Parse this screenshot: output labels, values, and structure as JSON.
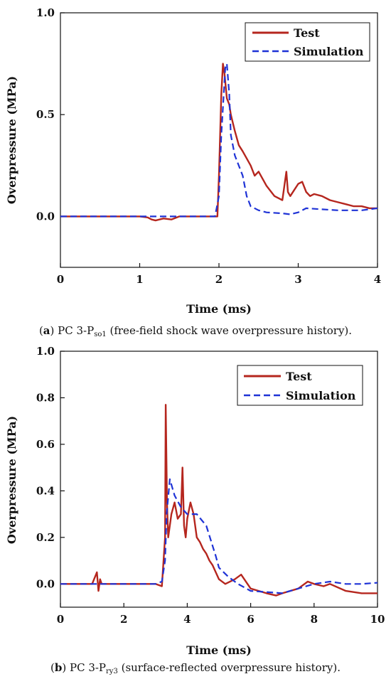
{
  "colors": {
    "test": "#b5261e",
    "simulation": "#1f33d6",
    "axis": "#111111"
  },
  "chart_data": [
    {
      "type": "line",
      "xlabel": "Time (ms)",
      "ylabel": "Overpressure (MPa)",
      "xlim": [
        0,
        4
      ],
      "ylim": [
        -0.25,
        1.0
      ],
      "xticks": [
        "0",
        "1",
        "2",
        "3",
        "4"
      ],
      "yticks": [
        "0.0",
        "0.5",
        "1.0"
      ],
      "xtick_values": [
        0,
        1,
        2,
        3,
        4
      ],
      "ytick_values": [
        0.0,
        0.5,
        1.0
      ],
      "legend": [
        "Test",
        "Simulation"
      ],
      "legend_position": "top-right",
      "grid": false,
      "caption": {
        "label": "a",
        "prefix": "PC 3-P",
        "sub": "so1",
        "suffix": " (free-field shock wave overpressure history)."
      },
      "series": [
        {
          "name": "Test",
          "x": [
            0,
            0.5,
            1.0,
            1.1,
            1.15,
            1.2,
            1.3,
            1.4,
            1.5,
            1.7,
            1.9,
            1.98,
            2.0,
            2.03,
            2.05,
            2.07,
            2.1,
            2.13,
            2.15,
            2.2,
            2.25,
            2.3,
            2.4,
            2.45,
            2.5,
            2.6,
            2.7,
            2.8,
            2.85,
            2.87,
            2.9,
            2.95,
            3.0,
            3.05,
            3.1,
            3.15,
            3.2,
            3.3,
            3.4,
            3.5,
            3.6,
            3.7,
            3.8,
            3.9,
            4.0
          ],
          "y": [
            0.0,
            0.0,
            0.0,
            -0.005,
            -0.015,
            -0.02,
            -0.01,
            -0.015,
            0.0,
            0.0,
            0.0,
            0.0,
            0.2,
            0.6,
            0.75,
            0.7,
            0.58,
            0.55,
            0.5,
            0.42,
            0.35,
            0.32,
            0.25,
            0.2,
            0.22,
            0.15,
            0.1,
            0.08,
            0.22,
            0.12,
            0.1,
            0.13,
            0.16,
            0.17,
            0.12,
            0.1,
            0.11,
            0.1,
            0.08,
            0.07,
            0.06,
            0.05,
            0.05,
            0.04,
            0.04
          ]
        },
        {
          "name": "Simulation",
          "x": [
            0,
            0.5,
            1.0,
            1.5,
            1.8,
            1.95,
            2.0,
            2.03,
            2.06,
            2.08,
            2.1,
            2.13,
            2.15,
            2.2,
            2.3,
            2.35,
            2.4,
            2.5,
            2.6,
            2.8,
            2.9,
            3.0,
            3.05,
            3.1,
            3.3,
            3.5,
            3.8,
            4.0
          ],
          "y": [
            0.0,
            0.0,
            0.0,
            0.0,
            0.0,
            0.0,
            0.1,
            0.4,
            0.6,
            0.73,
            0.75,
            0.6,
            0.4,
            0.3,
            0.2,
            0.1,
            0.05,
            0.03,
            0.02,
            0.015,
            0.01,
            0.02,
            0.03,
            0.04,
            0.035,
            0.03,
            0.03,
            0.04
          ]
        }
      ]
    },
    {
      "type": "line",
      "xlabel": "Time (ms)",
      "ylabel": "Overpressure (MPa)",
      "xlim": [
        0,
        10
      ],
      "ylim": [
        -0.1,
        1.0
      ],
      "xticks": [
        "0",
        "2",
        "4",
        "6",
        "8",
        "10"
      ],
      "yticks": [
        "0.0",
        "0.2",
        "0.4",
        "0.6",
        "0.8",
        "1.0"
      ],
      "xtick_values": [
        0,
        2,
        4,
        6,
        8,
        10
      ],
      "ytick_values": [
        0.0,
        0.2,
        0.4,
        0.6,
        0.8,
        1.0
      ],
      "legend": [
        "Test",
        "Simulation"
      ],
      "legend_position": "top-right",
      "grid": false,
      "caption": {
        "label": "b",
        "prefix": "PC 3-P",
        "sub": "ry3",
        "suffix": " (surface-reflected overpressure history)."
      },
      "series": [
        {
          "name": "Test",
          "x": [
            0,
            0.5,
            1.0,
            1.15,
            1.2,
            1.25,
            1.3,
            2.0,
            3.0,
            3.2,
            3.3,
            3.32,
            3.36,
            3.4,
            3.5,
            3.6,
            3.7,
            3.8,
            3.85,
            3.9,
            3.95,
            4.0,
            4.1,
            4.2,
            4.3,
            4.4,
            4.5,
            4.6,
            4.7,
            4.8,
            5.0,
            5.2,
            5.5,
            5.7,
            6.0,
            6.5,
            6.8,
            7.0,
            7.5,
            7.8,
            8.0,
            8.3,
            8.5,
            9.0,
            9.5,
            10.0
          ],
          "y": [
            0.0,
            0.0,
            0.0,
            0.05,
            -0.03,
            0.02,
            0.0,
            0.0,
            0.0,
            -0.01,
            0.2,
            0.77,
            0.35,
            0.2,
            0.3,
            0.35,
            0.28,
            0.3,
            0.5,
            0.25,
            0.2,
            0.28,
            0.35,
            0.3,
            0.2,
            0.18,
            0.15,
            0.13,
            0.1,
            0.08,
            0.02,
            0.0,
            0.02,
            0.04,
            -0.02,
            -0.04,
            -0.05,
            -0.04,
            -0.02,
            0.01,
            0.0,
            -0.01,
            0.0,
            -0.03,
            -0.04,
            -0.04
          ]
        },
        {
          "name": "Simulation",
          "x": [
            0,
            1.0,
            2.0,
            3.0,
            3.2,
            3.3,
            3.35,
            3.45,
            3.6,
            3.8,
            4.0,
            4.3,
            4.6,
            4.9,
            5.0,
            5.3,
            5.6,
            6.0,
            6.5,
            7.0,
            7.5,
            8.0,
            8.5,
            9.0,
            9.5,
            10.0
          ],
          "y": [
            0.0,
            0.0,
            0.0,
            0.0,
            0.01,
            0.1,
            0.3,
            0.45,
            0.38,
            0.33,
            0.3,
            0.3,
            0.25,
            0.12,
            0.07,
            0.03,
            0.0,
            -0.03,
            -0.035,
            -0.04,
            -0.02,
            0.0,
            0.01,
            0.0,
            0.0,
            0.005
          ]
        }
      ]
    }
  ]
}
